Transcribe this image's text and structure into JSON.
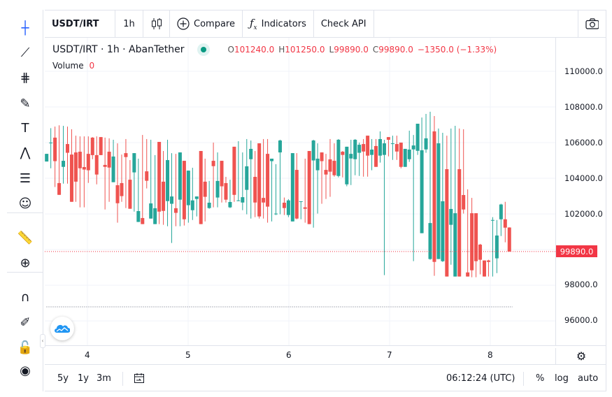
{
  "left_toolbar": {
    "tools": [
      {
        "name": "crosshair-icon",
        "glyph": "┼"
      },
      {
        "name": "trend-line-icon",
        "glyph": "⟋"
      },
      {
        "name": "fib-icon",
        "glyph": "⋕"
      },
      {
        "name": "brush-icon",
        "glyph": "✎"
      },
      {
        "name": "text-icon",
        "glyph": "T"
      },
      {
        "name": "pattern-icon",
        "glyph": "⋀"
      },
      {
        "name": "prediction-icon",
        "glyph": "☰"
      },
      {
        "name": "emoji-icon",
        "glyph": "☺"
      },
      {
        "name": "ruler-icon",
        "glyph": "📏"
      },
      {
        "name": "zoom-in-icon",
        "glyph": "⊕"
      },
      {
        "name": "magnet-icon",
        "glyph": "∩"
      },
      {
        "name": "lock-drawing-icon",
        "glyph": "✐"
      },
      {
        "name": "lock-icon",
        "glyph": "🔓"
      },
      {
        "name": "eye-icon",
        "glyph": "◉"
      }
    ]
  },
  "topbar": {
    "symbol": "USDT/IRT",
    "interval": "1h",
    "compare": "Compare",
    "indicators": "Indicators",
    "check_api": "Check API"
  },
  "legend": {
    "title": "USDT/IRT · 1h · AbanTether",
    "o_label": "O",
    "o": "101240.0",
    "h_label": "H",
    "h": "101250.0",
    "l_label": "L",
    "l": "99890.0",
    "c_label": "C",
    "c": "99890.0",
    "change": "−1350.0 (−1.33%)",
    "volume_label": "Volume",
    "volume": "0"
  },
  "price_axis": {
    "labels": [
      "110000.0",
      "108000.0",
      "106000.0",
      "104000.0",
      "102000.0",
      "98000.0",
      "96000.0"
    ],
    "current": "99890.0"
  },
  "time_axis": {
    "labels": [
      "4",
      "5",
      "6",
      "7",
      "8"
    ]
  },
  "bottombar": {
    "ranges": [
      "5y",
      "1y",
      "3m"
    ],
    "clock": "06:12:24 (UTC)",
    "percent": "%",
    "log": "log",
    "auto": "auto"
  },
  "colors": {
    "up": "#26a69a",
    "down": "#ef5350",
    "accent": "#2962ff"
  },
  "chart_data": {
    "type": "candlestick",
    "symbol": "USDT/IRT",
    "interval": "1h",
    "ylim": [
      95000,
      111500
    ],
    "last_price": 99890.0,
    "ohlc": [
      [
        104940,
        105370,
        104940,
        105370
      ],
      [
        105990,
        106810,
        104560,
        106000
      ],
      [
        106280,
        106900,
        103510,
        104960
      ],
      [
        103730,
        106970,
        103070,
        103070
      ],
      [
        104640,
        106940,
        103700,
        104980
      ],
      [
        105920,
        106900,
        103700,
        105430
      ],
      [
        105330,
        106750,
        102680,
        102680
      ],
      [
        105450,
        106390,
        102680,
        103810
      ],
      [
        105490,
        106350,
        102370,
        104560
      ],
      [
        104630,
        106350,
        102370,
        104490
      ],
      [
        105370,
        106350,
        103740,
        104450
      ],
      [
        106280,
        106310,
        105070,
        105300
      ],
      [
        105300,
        106350,
        103660,
        104210
      ],
      [
        106310,
        106310,
        105300,
        105300
      ],
      [
        104750,
        106280,
        102250,
        104640
      ],
      [
        105490,
        106240,
        102680,
        104600
      ],
      [
        103780,
        106160,
        103780,
        105220
      ],
      [
        103610,
        105960,
        101510,
        102600
      ],
      [
        103730,
        105330,
        102680,
        103000
      ],
      [
        105410,
        106200,
        102330,
        105190
      ],
      [
        103920,
        105020,
        102290,
        102290
      ],
      [
        104330,
        105410,
        102130,
        105410
      ],
      [
        101550,
        105100,
        101550,
        102160
      ],
      [
        101770,
        106430,
        101430,
        101430
      ],
      [
        104390,
        106200,
        103430,
        103860
      ],
      [
        101740,
        106160,
        101740,
        102590
      ],
      [
        101430,
        105300,
        101430,
        102320
      ],
      [
        106040,
        106040,
        101430,
        102130
      ],
      [
        103810,
        105530,
        101390,
        102170
      ],
      [
        102720,
        106160,
        101310,
        105020
      ],
      [
        102570,
        105410,
        100370,
        102980
      ],
      [
        102320,
        105370,
        101310,
        102060
      ],
      [
        102800,
        105450,
        101310,
        105450
      ],
      [
        104980,
        104980,
        101350,
        101700
      ],
      [
        102490,
        104430,
        101510,
        104430
      ],
      [
        102210,
        104590,
        101660,
        102760
      ],
      [
        102840,
        102980,
        101860,
        102980
      ],
      [
        105530,
        105530,
        101430,
        101430
      ],
      [
        103810,
        105100,
        101580,
        102960
      ],
      [
        102330,
        103850,
        102290,
        102630
      ],
      [
        104980,
        106000,
        102370,
        104680
      ],
      [
        102920,
        105450,
        102370,
        103850
      ],
      [
        104980,
        104980,
        102640,
        103550
      ],
      [
        103730,
        104080,
        102640,
        102800
      ],
      [
        102370,
        103920,
        102330,
        102670
      ],
      [
        105770,
        105770,
        102680,
        103070
      ],
      [
        102720,
        106080,
        102720,
        102760
      ],
      [
        102640,
        105450,
        102210,
        102940
      ],
      [
        103350,
        106200,
        101980,
        104670
      ],
      [
        105070,
        106120,
        101740,
        105650
      ],
      [
        104080,
        105530,
        101820,
        102640
      ],
      [
        105960,
        105960,
        101740,
        101860
      ],
      [
        102900,
        106200,
        101740,
        102640
      ],
      [
        105370,
        106200,
        101510,
        102410
      ],
      [
        104960,
        105100,
        101580,
        105100
      ],
      [
        101980,
        104790,
        101940,
        102020
      ],
      [
        105450,
        106160,
        101980,
        106120
      ],
      [
        102630,
        102920,
        101940,
        102330
      ],
      [
        101940,
        102830,
        101820,
        102760
      ],
      [
        101580,
        105410,
        101580,
        105410
      ],
      [
        104470,
        105410,
        101700,
        101740
      ],
      [
        102680,
        102710,
        101700,
        102710
      ],
      [
        102370,
        105100,
        101510,
        102290
      ],
      [
        105530,
        105530,
        101430,
        101430
      ],
      [
        105000,
        106160,
        101230,
        106120
      ],
      [
        104450,
        105960,
        102020,
        105100
      ],
      [
        105450,
        105450,
        102570,
        104960
      ],
      [
        104470,
        105370,
        102840,
        104210
      ],
      [
        105060,
        106200,
        102960,
        104370
      ],
      [
        104980,
        105960,
        104090,
        104170
      ],
      [
        104130,
        106200,
        104050,
        106160
      ],
      [
        105490,
        105530,
        104050,
        105310
      ],
      [
        103660,
        105770,
        103550,
        105770
      ],
      [
        105110,
        106160,
        103620,
        105370
      ],
      [
        105070,
        106200,
        104170,
        106160
      ],
      [
        105430,
        106000,
        104130,
        105880
      ],
      [
        105920,
        106200,
        104090,
        105500
      ],
      [
        106390,
        106390,
        104090,
        105270
      ],
      [
        105310,
        106200,
        104450,
        105610
      ],
      [
        105810,
        106200,
        104640,
        104640
      ],
      [
        105270,
        106630,
        104880,
        106200
      ],
      [
        105310,
        106160,
        98570,
        105960
      ],
      [
        106310,
        106310,
        105230,
        106160
      ],
      [
        105940,
        106390,
        105030,
        105960
      ],
      [
        105920,
        106390,
        105030,
        105500
      ],
      [
        106000,
        106000,
        104560,
        104640
      ],
      [
        104640,
        105650,
        104640,
        105650
      ],
      [
        105070,
        106670,
        104920,
        105610
      ],
      [
        105620,
        106430,
        99350,
        105840
      ],
      [
        105540,
        107060,
        105310,
        107060
      ],
      [
        100920,
        107410,
        100920,
        105570
      ],
      [
        105620,
        107610,
        105430,
        106240
      ],
      [
        99470,
        107730,
        99430,
        101490
      ],
      [
        106630,
        107490,
        98530,
        99310
      ],
      [
        99470,
        106790,
        99470,
        105960
      ],
      [
        99350,
        106550,
        99310,
        102710
      ],
      [
        104510,
        106390,
        98490,
        98490
      ],
      [
        101390,
        106790,
        99150,
        102280
      ],
      [
        98490,
        106940,
        98490,
        102040
      ],
      [
        104510,
        106790,
        98490,
        98490
      ],
      [
        103060,
        106750,
        102020,
        102250
      ],
      [
        98720,
        103380,
        98490,
        98490
      ],
      [
        102040,
        102900,
        98450,
        98840
      ],
      [
        102040,
        102040,
        98450,
        99350
      ],
      [
        100280,
        100320,
        98610,
        99430
      ],
      [
        99390,
        99390,
        98490,
        98490
      ],
      [
        99390,
        99430,
        98490,
        99310
      ],
      [
        101620,
        101820,
        98490,
        101660
      ],
      [
        99510,
        101660,
        98680,
        100790
      ],
      [
        101700,
        102570,
        100760,
        102530
      ],
      [
        101700,
        102680,
        100410,
        101230
      ],
      [
        101240,
        101250,
        99890,
        99890
      ]
    ]
  }
}
